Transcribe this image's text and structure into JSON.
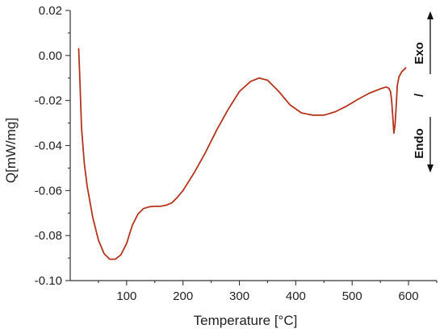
{
  "chart_data": {
    "type": "line",
    "title": "",
    "xlabel": "Temperature [°C]",
    "ylabel": "Q[mW/mg]",
    "xlim": [
      0,
      650
    ],
    "ylim": [
      -0.1,
      0.02
    ],
    "x_ticks": [
      100,
      200,
      300,
      400,
      500,
      600
    ],
    "x_tick_labels": [
      "100",
      "200",
      "300",
      "400",
      "500",
      "600"
    ],
    "y_ticks": [
      0.02,
      0.0,
      -0.02,
      -0.04,
      -0.06,
      -0.08,
      -0.1
    ],
    "y_tick_labels": [
      "0.02",
      "0.00",
      "-0.02",
      "-0.04",
      "-0.06",
      "-0.08",
      "-0.10"
    ],
    "grid": false,
    "line_color": "#b5341e",
    "side_annotation": {
      "exo": "Exo",
      "separator": "/",
      "endo": "Endo"
    },
    "series": [
      {
        "x": [
          15,
          17,
          20,
          25,
          30,
          40,
          50,
          60,
          70,
          80,
          90,
          100,
          110,
          120,
          130,
          140,
          150,
          160,
          170,
          180,
          190,
          200,
          220,
          240,
          260,
          280,
          300,
          320,
          335,
          350,
          370,
          390,
          410,
          430,
          450,
          470,
          490,
          510,
          530,
          550,
          560,
          565,
          568,
          570,
          572,
          574,
          576,
          578,
          580,
          583,
          588,
          595
        ],
        "y": [
          0.003,
          -0.01,
          -0.032,
          -0.048,
          -0.058,
          -0.072,
          -0.082,
          -0.088,
          -0.0905,
          -0.0905,
          -0.0885,
          -0.0835,
          -0.0755,
          -0.0705,
          -0.068,
          -0.0672,
          -0.067,
          -0.067,
          -0.0665,
          -0.0655,
          -0.063,
          -0.06,
          -0.052,
          -0.043,
          -0.033,
          -0.024,
          -0.016,
          -0.0115,
          -0.01,
          -0.011,
          -0.016,
          -0.022,
          -0.0255,
          -0.0265,
          -0.0265,
          -0.025,
          -0.0225,
          -0.0195,
          -0.0168,
          -0.0148,
          -0.014,
          -0.0145,
          -0.016,
          -0.02,
          -0.027,
          -0.0345,
          -0.031,
          -0.023,
          -0.0135,
          -0.0095,
          -0.0072,
          -0.0055
        ]
      }
    ]
  }
}
